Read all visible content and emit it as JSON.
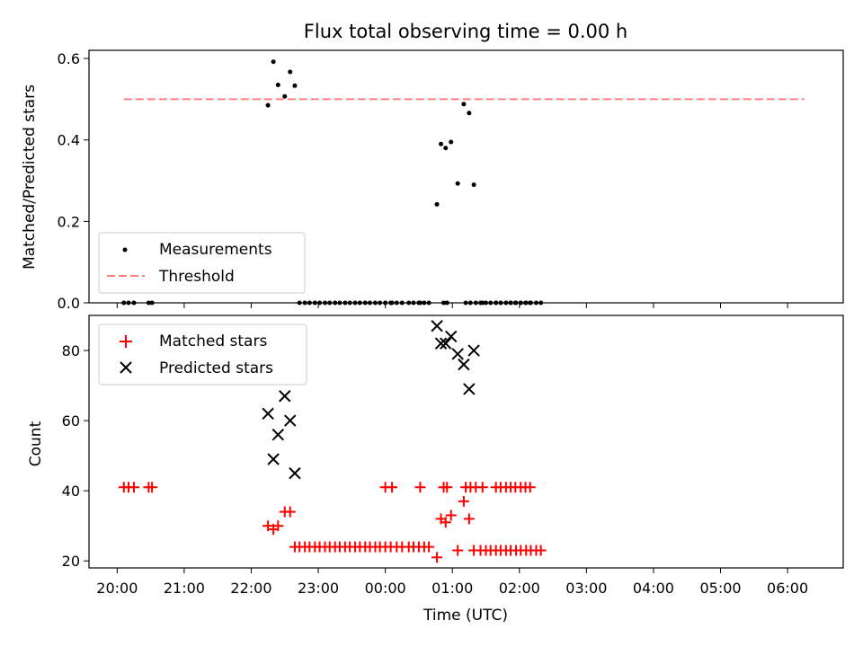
{
  "chart_data": [
    {
      "type": "scatter",
      "title": "Flux total observing time = 0.00 h",
      "xlabel": "",
      "ylabel": "Matched/Predicted stars",
      "xlim": [
        -0.42,
        10.83
      ],
      "ylim": [
        0.0,
        0.62
      ],
      "yticks": [
        0.0,
        0.2,
        0.4,
        0.6
      ],
      "ytick_labels": [
        "0.0",
        "0.2",
        "0.4",
        "0.6"
      ],
      "legend": {
        "placement": "lower-left",
        "entries": [
          "Measurements",
          "Threshold"
        ]
      },
      "threshold": {
        "name": "Threshold",
        "value": 0.5,
        "x_range": [
          0.1,
          10.25
        ],
        "color": "#ff7f7f",
        "style": "dashed"
      },
      "series": [
        {
          "name": "Measurements",
          "marker": "dot",
          "color": "#000000",
          "points": [
            [
              0.1,
              0
            ],
            [
              0.17,
              0
            ],
            [
              0.25,
              0
            ],
            [
              0.47,
              0
            ],
            [
              0.52,
              0
            ],
            [
              4.0,
              0
            ],
            [
              4.1,
              0
            ],
            [
              4.52,
              0
            ],
            [
              4.87,
              0
            ],
            [
              4.92,
              0
            ],
            [
              5.2,
              0
            ],
            [
              5.27,
              0
            ],
            [
              5.35,
              0
            ],
            [
              5.45,
              0
            ],
            [
              5.65,
              0
            ],
            [
              5.72,
              0
            ],
            [
              5.8,
              0
            ],
            [
              5.87,
              0
            ],
            [
              5.94,
              0
            ],
            [
              6.02,
              0
            ],
            [
              6.09,
              0
            ],
            [
              6.16,
              0
            ],
            [
              2.25,
              0.485
            ],
            [
              2.33,
              0.592
            ],
            [
              2.4,
              0.535
            ],
            [
              2.5,
              0.507
            ],
            [
              2.58,
              0.567
            ],
            [
              2.65,
              0.533
            ],
            [
              2.72,
              0
            ],
            [
              2.8,
              0
            ],
            [
              2.87,
              0
            ],
            [
              2.95,
              0
            ],
            [
              3.02,
              0
            ],
            [
              3.1,
              0
            ],
            [
              3.17,
              0
            ],
            [
              3.25,
              0
            ],
            [
              3.32,
              0
            ],
            [
              3.4,
              0
            ],
            [
              3.47,
              0
            ],
            [
              3.55,
              0
            ],
            [
              3.62,
              0
            ],
            [
              3.7,
              0
            ],
            [
              3.77,
              0
            ],
            [
              3.85,
              0
            ],
            [
              3.92,
              0
            ],
            [
              4.0,
              0
            ],
            [
              4.08,
              0
            ],
            [
              4.17,
              0
            ],
            [
              4.25,
              0
            ],
            [
              4.35,
              0
            ],
            [
              4.42,
              0
            ],
            [
              4.5,
              0
            ],
            [
              4.58,
              0
            ],
            [
              4.65,
              0
            ],
            [
              4.77,
              0.242
            ],
            [
              4.83,
              0.39
            ],
            [
              4.9,
              0.38
            ],
            [
              4.98,
              0.395
            ],
            [
              5.08,
              0.293
            ],
            [
              5.17,
              0.488
            ],
            [
              5.25,
              0.466
            ],
            [
              5.32,
              0.29
            ],
            [
              5.42,
              0
            ],
            [
              5.5,
              0
            ],
            [
              5.57,
              0
            ],
            [
              5.65,
              0
            ],
            [
              5.72,
              0
            ],
            [
              5.8,
              0
            ],
            [
              5.87,
              0
            ],
            [
              5.95,
              0
            ],
            [
              6.02,
              0
            ],
            [
              6.1,
              0
            ],
            [
              6.17,
              0
            ],
            [
              6.25,
              0
            ],
            [
              6.32,
              0
            ]
          ]
        }
      ]
    },
    {
      "type": "scatter",
      "title": "",
      "xlabel": "Time (UTC)",
      "ylabel": "Count",
      "xlim": [
        -0.42,
        10.83
      ],
      "ylim": [
        18,
        90
      ],
      "yticks": [
        20,
        40,
        60,
        80
      ],
      "ytick_labels": [
        "20",
        "40",
        "60",
        "80"
      ],
      "xticks": [
        0,
        1,
        2,
        3,
        4,
        5,
        6,
        7,
        8,
        9,
        10
      ],
      "xtick_labels": [
        "20:00",
        "21:00",
        "22:00",
        "23:00",
        "00:00",
        "01:00",
        "02:00",
        "03:00",
        "04:00",
        "05:00",
        "06:00"
      ],
      "legend": {
        "placement": "upper-left",
        "entries": [
          "Matched stars",
          "Predicted stars"
        ]
      },
      "series": [
        {
          "name": "Matched stars",
          "marker": "plus",
          "color": "#ff0000",
          "points": [
            [
              0.1,
              41
            ],
            [
              0.17,
              41
            ],
            [
              0.25,
              41
            ],
            [
              0.47,
              41
            ],
            [
              0.52,
              41
            ],
            [
              4.0,
              41
            ],
            [
              4.1,
              41
            ],
            [
              4.52,
              41
            ],
            [
              4.87,
              41
            ],
            [
              4.92,
              41
            ],
            [
              5.2,
              41
            ],
            [
              5.27,
              41
            ],
            [
              5.35,
              41
            ],
            [
              5.45,
              41
            ],
            [
              5.65,
              41
            ],
            [
              5.72,
              41
            ],
            [
              5.8,
              41
            ],
            [
              5.87,
              41
            ],
            [
              5.94,
              41
            ],
            [
              6.02,
              41
            ],
            [
              6.09,
              41
            ],
            [
              6.16,
              41
            ],
            [
              2.25,
              30
            ],
            [
              2.33,
              29
            ],
            [
              2.4,
              30
            ],
            [
              2.5,
              34
            ],
            [
              2.58,
              34
            ],
            [
              2.65,
              24
            ],
            [
              2.72,
              24
            ],
            [
              2.8,
              24
            ],
            [
              2.87,
              24
            ],
            [
              2.95,
              24
            ],
            [
              3.02,
              24
            ],
            [
              3.1,
              24
            ],
            [
              3.17,
              24
            ],
            [
              3.25,
              24
            ],
            [
              3.32,
              24
            ],
            [
              3.4,
              24
            ],
            [
              3.47,
              24
            ],
            [
              3.55,
              24
            ],
            [
              3.62,
              24
            ],
            [
              3.7,
              24
            ],
            [
              3.77,
              24
            ],
            [
              3.85,
              24
            ],
            [
              3.92,
              24
            ],
            [
              4.0,
              24
            ],
            [
              4.08,
              24
            ],
            [
              4.17,
              24
            ],
            [
              4.25,
              24
            ],
            [
              4.35,
              24
            ],
            [
              4.42,
              24
            ],
            [
              4.5,
              24
            ],
            [
              4.58,
              24
            ],
            [
              4.65,
              24
            ],
            [
              4.77,
              21
            ],
            [
              4.83,
              32
            ],
            [
              4.9,
              31
            ],
            [
              4.98,
              33
            ],
            [
              5.08,
              23
            ],
            [
              5.17,
              37
            ],
            [
              5.25,
              32
            ],
            [
              5.32,
              23
            ],
            [
              5.42,
              23
            ],
            [
              5.5,
              23
            ],
            [
              5.57,
              23
            ],
            [
              5.65,
              23
            ],
            [
              5.72,
              23
            ],
            [
              5.8,
              23
            ],
            [
              5.87,
              23
            ],
            [
              5.95,
              23
            ],
            [
              6.02,
              23
            ],
            [
              6.1,
              23
            ],
            [
              6.17,
              23
            ],
            [
              6.25,
              23
            ],
            [
              6.32,
              23
            ]
          ]
        },
        {
          "name": "Predicted stars",
          "marker": "x",
          "color": "#000000",
          "points": [
            [
              2.25,
              62
            ],
            [
              2.33,
              49
            ],
            [
              2.4,
              56
            ],
            [
              2.5,
              67
            ],
            [
              2.58,
              60
            ],
            [
              2.65,
              45
            ],
            [
              4.77,
              87
            ],
            [
              4.83,
              82
            ],
            [
              4.9,
              82
            ],
            [
              4.98,
              84
            ],
            [
              5.08,
              79
            ],
            [
              5.17,
              76
            ],
            [
              5.25,
              69
            ],
            [
              5.32,
              80
            ]
          ]
        }
      ]
    }
  ]
}
